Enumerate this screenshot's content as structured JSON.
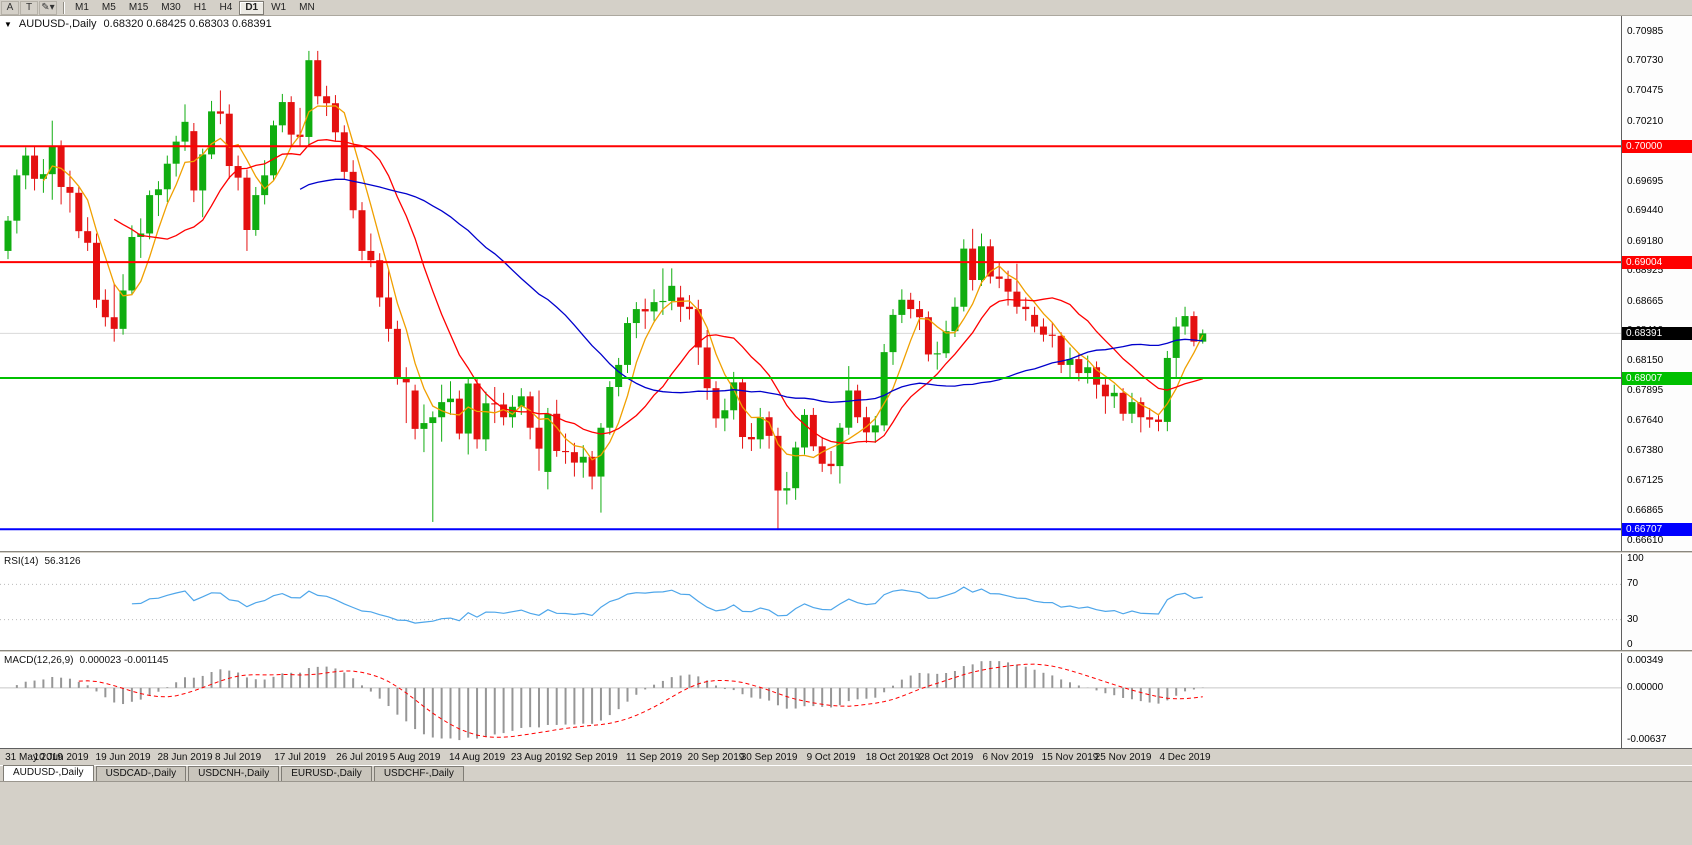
{
  "toolbar": {
    "icons": [
      {
        "glyph": "A",
        "name": "arrow-tool-icon"
      },
      {
        "glyph": "T",
        "name": "text-tool-icon"
      },
      {
        "glyph": "✎▾",
        "name": "draw-tool-icon"
      }
    ],
    "timeframes": [
      {
        "label": "M1",
        "active": false
      },
      {
        "label": "M5",
        "active": false
      },
      {
        "label": "M15",
        "active": false
      },
      {
        "label": "M30",
        "active": false
      },
      {
        "label": "H1",
        "active": false
      },
      {
        "label": "H4",
        "active": false
      },
      {
        "label": "D1",
        "active": true
      },
      {
        "label": "W1",
        "active": false
      },
      {
        "label": "MN",
        "active": false
      }
    ]
  },
  "chart": {
    "marker_glyph": "▼",
    "title": "AUDUSD-,Daily",
    "ohlc_text": "0.68320 0.68425 0.68303 0.68391"
  },
  "chart_data": {
    "type": "candlestick",
    "symbol": "AUDUSD",
    "period": "Daily",
    "up_color": "#10ad10",
    "down_color": "#e41010",
    "price_axis": {
      "min": 0.6652,
      "max": 0.7112,
      "labels": [
        "0.70985",
        "0.70730",
        "0.70475",
        "0.70210",
        "0.69955",
        "0.69695",
        "0.69440",
        "0.69180",
        "0.68925",
        "0.68665",
        "0.68410",
        "0.68150",
        "0.67895",
        "0.67640",
        "0.67380",
        "0.67125",
        "0.66865",
        "0.66610"
      ]
    },
    "hlines": [
      {
        "price": 0.7,
        "label": "0.70000",
        "color": "#ff0000"
      },
      {
        "price": 0.69004,
        "label": "0.69004",
        "color": "#ff0000"
      },
      {
        "price": 0.68007,
        "label": "0.68007",
        "color": "#00c000"
      },
      {
        "price": 0.66707,
        "label": "0.66707",
        "color": "#0000ff"
      }
    ],
    "current_price": {
      "value": 0.68391,
      "label": "0.68391",
      "badge_color": "#000000"
    },
    "moving_averages": [
      {
        "period": 5,
        "color": "#f0a000"
      },
      {
        "period": 13,
        "color": "#ff0000"
      },
      {
        "period": 34,
        "color": "#0000cc"
      }
    ],
    "x_labels": [
      {
        "text": "31 May 2019",
        "i": 0
      },
      {
        "text": "10 Jun 2019",
        "i": 6
      },
      {
        "text": "19 Jun 2019",
        "i": 13
      },
      {
        "text": "28 Jun 2019",
        "i": 20
      },
      {
        "text": "8 Jul 2019",
        "i": 26
      },
      {
        "text": "17 Jul 2019",
        "i": 33
      },
      {
        "text": "26 Jul 2019",
        "i": 40
      },
      {
        "text": "5 Aug 2019",
        "i": 46
      },
      {
        "text": "14 Aug 2019",
        "i": 53
      },
      {
        "text": "23 Aug 2019",
        "i": 60
      },
      {
        "text": "2 Sep 2019",
        "i": 66
      },
      {
        "text": "11 Sep 2019",
        "i": 73
      },
      {
        "text": "20 Sep 2019",
        "i": 80
      },
      {
        "text": "30 Sep 2019",
        "i": 86
      },
      {
        "text": "9 Oct 2019",
        "i": 93
      },
      {
        "text": "18 Oct 2019",
        "i": 100
      },
      {
        "text": "28 Oct 2019",
        "i": 106
      },
      {
        "text": "6 Nov 2019",
        "i": 113
      },
      {
        "text": "15 Nov 2019",
        "i": 120
      },
      {
        "text": "25 Nov 2019",
        "i": 126
      },
      {
        "text": "4 Dec 2019",
        "i": 133
      }
    ],
    "candles": [
      [
        0.691,
        0.694,
        0.6903,
        0.6936
      ],
      [
        0.6936,
        0.698,
        0.6925,
        0.6975
      ],
      [
        0.6975,
        0.6999,
        0.6963,
        0.6992
      ],
      [
        0.6992,
        0.7,
        0.6962,
        0.6972
      ],
      [
        0.6972,
        0.6989,
        0.696,
        0.6976
      ],
      [
        0.6976,
        0.7022,
        0.6954,
        0.7
      ],
      [
        0.7,
        0.7005,
        0.695,
        0.6965
      ],
      [
        0.6965,
        0.6979,
        0.6943,
        0.696
      ],
      [
        0.696,
        0.6965,
        0.6921,
        0.6927
      ],
      [
        0.6927,
        0.6939,
        0.691,
        0.6917
      ],
      [
        0.6917,
        0.6925,
        0.6861,
        0.6868
      ],
      [
        0.6868,
        0.6877,
        0.6845,
        0.6853
      ],
      [
        0.6853,
        0.6882,
        0.6832,
        0.6843
      ],
      [
        0.6843,
        0.689,
        0.6838,
        0.6876
      ],
      [
        0.6876,
        0.6932,
        0.6872,
        0.6922
      ],
      [
        0.6922,
        0.6938,
        0.6904,
        0.6925
      ],
      [
        0.6925,
        0.6962,
        0.692,
        0.6958
      ],
      [
        0.6958,
        0.697,
        0.694,
        0.6963
      ],
      [
        0.6963,
        0.6992,
        0.6952,
        0.6985
      ],
      [
        0.6985,
        0.7009,
        0.6974,
        0.7004
      ],
      [
        0.7004,
        0.7036,
        0.6996,
        0.7021
      ],
      [
        0.7013,
        0.702,
        0.6952,
        0.6962
      ],
      [
        0.6962,
        0.6998,
        0.6939,
        0.6993
      ],
      [
        0.6993,
        0.7039,
        0.6989,
        0.703
      ],
      [
        0.703,
        0.7048,
        0.7019,
        0.7028
      ],
      [
        0.7028,
        0.7036,
        0.6972,
        0.6983
      ],
      [
        0.6983,
        0.6992,
        0.6962,
        0.6973
      ],
      [
        0.6973,
        0.698,
        0.691,
        0.6928
      ],
      [
        0.6928,
        0.6965,
        0.6923,
        0.6958
      ],
      [
        0.6958,
        0.6988,
        0.695,
        0.6975
      ],
      [
        0.6975,
        0.7022,
        0.6971,
        0.7018
      ],
      [
        0.7018,
        0.7045,
        0.7012,
        0.7038
      ],
      [
        0.7038,
        0.7043,
        0.7,
        0.701
      ],
      [
        0.701,
        0.7033,
        0.7,
        0.7008
      ],
      [
        0.7008,
        0.7082,
        0.7001,
        0.7074
      ],
      [
        0.7074,
        0.7082,
        0.7036,
        0.7043
      ],
      [
        0.7043,
        0.7052,
        0.7026,
        0.7037
      ],
      [
        0.7037,
        0.7044,
        0.7005,
        0.7012
      ],
      [
        0.7012,
        0.7018,
        0.6972,
        0.6978
      ],
      [
        0.6978,
        0.6988,
        0.6938,
        0.6945
      ],
      [
        0.6945,
        0.6952,
        0.6902,
        0.691
      ],
      [
        0.691,
        0.6925,
        0.6896,
        0.6902
      ],
      [
        0.6902,
        0.6908,
        0.6862,
        0.687
      ],
      [
        0.687,
        0.6894,
        0.6832,
        0.6843
      ],
      [
        0.6843,
        0.685,
        0.6795,
        0.68
      ],
      [
        0.68,
        0.681,
        0.6762,
        0.6797
      ],
      [
        0.679,
        0.6795,
        0.6748,
        0.6757
      ],
      [
        0.6757,
        0.6778,
        0.6737,
        0.6762
      ],
      [
        0.6762,
        0.6772,
        0.6677,
        0.6767
      ],
      [
        0.6767,
        0.6795,
        0.6746,
        0.678
      ],
      [
        0.678,
        0.6798,
        0.6769,
        0.6783
      ],
      [
        0.6783,
        0.679,
        0.6748,
        0.6753
      ],
      [
        0.6753,
        0.68,
        0.6735,
        0.6796
      ],
      [
        0.6796,
        0.68,
        0.674,
        0.6748
      ],
      [
        0.6748,
        0.6789,
        0.6738,
        0.6779
      ],
      [
        0.6779,
        0.6793,
        0.6762,
        0.6778
      ],
      [
        0.6778,
        0.6788,
        0.676,
        0.6767
      ],
      [
        0.6767,
        0.6786,
        0.6758,
        0.6776
      ],
      [
        0.6776,
        0.6792,
        0.6769,
        0.6785
      ],
      [
        0.6785,
        0.6789,
        0.6748,
        0.6758
      ],
      [
        0.6758,
        0.679,
        0.6721,
        0.674
      ],
      [
        0.672,
        0.6775,
        0.6705,
        0.677
      ],
      [
        0.677,
        0.6782,
        0.6733,
        0.6738
      ],
      [
        0.6738,
        0.6753,
        0.6727,
        0.6737
      ],
      [
        0.6737,
        0.6745,
        0.6716,
        0.6728
      ],
      [
        0.6728,
        0.6743,
        0.6715,
        0.6733
      ],
      [
        0.6733,
        0.6738,
        0.6705,
        0.6716
      ],
      [
        0.6716,
        0.6762,
        0.6685,
        0.6758
      ],
      [
        0.6758,
        0.6798,
        0.6752,
        0.6793
      ],
      [
        0.6793,
        0.6818,
        0.6785,
        0.6812
      ],
      [
        0.6812,
        0.6853,
        0.6805,
        0.6848
      ],
      [
        0.6848,
        0.6866,
        0.6835,
        0.686
      ],
      [
        0.686,
        0.6869,
        0.6843,
        0.6858
      ],
      [
        0.6858,
        0.6877,
        0.685,
        0.6866
      ],
      [
        0.6866,
        0.6895,
        0.6855,
        0.6867
      ],
      [
        0.6867,
        0.6895,
        0.6859,
        0.688
      ],
      [
        0.687,
        0.688,
        0.6849,
        0.6862
      ],
      [
        0.6862,
        0.6872,
        0.6851,
        0.686
      ],
      [
        0.686,
        0.6868,
        0.6812,
        0.6827
      ],
      [
        0.6827,
        0.6842,
        0.6782,
        0.6792
      ],
      [
        0.6792,
        0.6798,
        0.6758,
        0.6766
      ],
      [
        0.6766,
        0.6783,
        0.6755,
        0.6773
      ],
      [
        0.6773,
        0.6806,
        0.6765,
        0.6797
      ],
      [
        0.6797,
        0.68,
        0.674,
        0.675
      ],
      [
        0.675,
        0.6762,
        0.6738,
        0.6748
      ],
      [
        0.6748,
        0.6775,
        0.674,
        0.6767
      ],
      [
        0.6767,
        0.6772,
        0.674,
        0.6751
      ],
      [
        0.6751,
        0.6758,
        0.667,
        0.6704
      ],
      [
        0.6704,
        0.672,
        0.6692,
        0.6706
      ],
      [
        0.6706,
        0.6746,
        0.6696,
        0.6741
      ],
      [
        0.6741,
        0.6774,
        0.6735,
        0.6769
      ],
      [
        0.6769,
        0.6775,
        0.6738,
        0.6742
      ],
      [
        0.6742,
        0.675,
        0.672,
        0.6727
      ],
      [
        0.6727,
        0.6738,
        0.6718,
        0.6725
      ],
      [
        0.6725,
        0.6762,
        0.671,
        0.6758
      ],
      [
        0.6758,
        0.6811,
        0.6752,
        0.679
      ],
      [
        0.679,
        0.6795,
        0.6762,
        0.6767
      ],
      [
        0.6767,
        0.6776,
        0.6745,
        0.6754
      ],
      [
        0.6754,
        0.6768,
        0.6745,
        0.676
      ],
      [
        0.676,
        0.683,
        0.6755,
        0.6823
      ],
      [
        0.6823,
        0.686,
        0.6812,
        0.6855
      ],
      [
        0.6855,
        0.6877,
        0.6848,
        0.6868
      ],
      [
        0.6868,
        0.6874,
        0.6852,
        0.686
      ],
      [
        0.686,
        0.6867,
        0.6842,
        0.6853
      ],
      [
        0.6853,
        0.6858,
        0.6815,
        0.6821
      ],
      [
        0.6821,
        0.6832,
        0.6808,
        0.6822
      ],
      [
        0.6822,
        0.685,
        0.6818,
        0.6841
      ],
      [
        0.6841,
        0.687,
        0.6836,
        0.6862
      ],
      [
        0.6862,
        0.692,
        0.6858,
        0.6912
      ],
      [
        0.6912,
        0.6929,
        0.6876,
        0.6885
      ],
      [
        0.6885,
        0.6925,
        0.688,
        0.6914
      ],
      [
        0.6914,
        0.692,
        0.6882,
        0.6888
      ],
      [
        0.6888,
        0.69,
        0.6878,
        0.6886
      ],
      [
        0.6886,
        0.6893,
        0.6863,
        0.6875
      ],
      [
        0.6875,
        0.6899,
        0.6856,
        0.6862
      ],
      [
        0.6862,
        0.687,
        0.685,
        0.686
      ],
      [
        0.6855,
        0.6862,
        0.684,
        0.6845
      ],
      [
        0.6845,
        0.6852,
        0.6832,
        0.6838
      ],
      [
        0.6838,
        0.6848,
        0.6827,
        0.6837
      ],
      [
        0.6837,
        0.684,
        0.6805,
        0.6812
      ],
      [
        0.6812,
        0.6827,
        0.68,
        0.6817
      ],
      [
        0.6817,
        0.6822,
        0.6798,
        0.6805
      ],
      [
        0.6805,
        0.682,
        0.6796,
        0.681
      ],
      [
        0.681,
        0.6815,
        0.6783,
        0.6795
      ],
      [
        0.6795,
        0.68,
        0.677,
        0.6785
      ],
      [
        0.6785,
        0.6795,
        0.6775,
        0.6788
      ],
      [
        0.6788,
        0.6792,
        0.6764,
        0.677
      ],
      [
        0.677,
        0.6788,
        0.6762,
        0.678
      ],
      [
        0.678,
        0.6784,
        0.6754,
        0.6767
      ],
      [
        0.6767,
        0.6775,
        0.6758,
        0.6765
      ],
      [
        0.6765,
        0.677,
        0.6755,
        0.6763
      ],
      [
        0.6763,
        0.6824,
        0.6755,
        0.6818
      ],
      [
        0.6818,
        0.6853,
        0.68,
        0.6845
      ],
      [
        0.6845,
        0.6862,
        0.6838,
        0.6854
      ],
      [
        0.6854,
        0.6858,
        0.6828,
        0.6832
      ],
      [
        0.6832,
        0.68425,
        0.68303,
        0.68391
      ]
    ],
    "rsi": {
      "label": "RSI(14)",
      "value": "56.3126",
      "period": 14,
      "color": "#4ea6ea",
      "axis_labels": [
        "100",
        "70",
        "30",
        "0"
      ],
      "level_lines": [
        70,
        30
      ]
    },
    "macd": {
      "label": "MACD(12,26,9)",
      "values": "0.000023 -0.001145",
      "fast": 12,
      "slow": 26,
      "signal_period": 9,
      "bar_color": "#969696",
      "signal_color": "#ff0000",
      "axis_labels": [
        "0.00349",
        "0.00000",
        "-0.00637"
      ]
    }
  },
  "tabs": [
    {
      "label": "AUDUSD-,Daily",
      "active": true
    },
    {
      "label": "USDCAD-,Daily",
      "active": false
    },
    {
      "label": "USDCNH-,Daily",
      "active": false
    },
    {
      "label": "EURUSD-,Daily",
      "active": false
    },
    {
      "label": "USDCHF-,Daily",
      "active": false
    }
  ]
}
